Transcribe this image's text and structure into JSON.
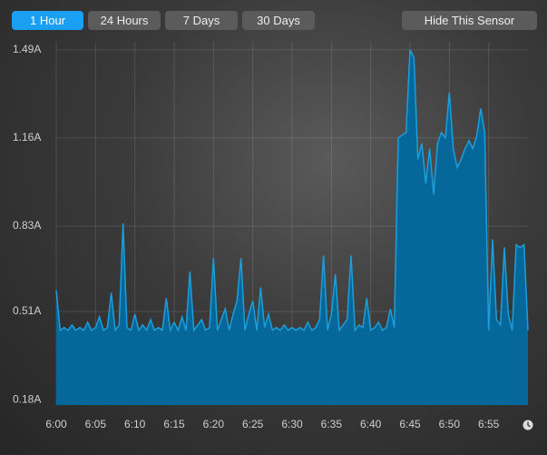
{
  "controls": {
    "ranges": [
      "1 Hour",
      "24 Hours",
      "7 Days",
      "30 Days"
    ],
    "selected": 0,
    "hide_button": "Hide This Sensor"
  },
  "chart_data": {
    "type": "area",
    "x": [
      360,
      360.5,
      361,
      361.5,
      362,
      362.5,
      363,
      363.5,
      364,
      364.5,
      365,
      365.5,
      366,
      366.5,
      367,
      367.5,
      368,
      368.5,
      369,
      369.5,
      370,
      370.5,
      371,
      371.5,
      372,
      372.5,
      373,
      373.5,
      374,
      374.5,
      375,
      375.5,
      376,
      376.5,
      377,
      377.5,
      378,
      378.5,
      379,
      379.5,
      380,
      380.5,
      381,
      381.5,
      382,
      382.5,
      383,
      383.5,
      384,
      384.5,
      385,
      385.5,
      386,
      386.5,
      387,
      387.5,
      388,
      388.5,
      389,
      389.5,
      390,
      390.5,
      391,
      391.5,
      392,
      392.5,
      393,
      393.5,
      394,
      394.5,
      395,
      395.5,
      396,
      396.5,
      397,
      397.5,
      398,
      398.5,
      399,
      399.5,
      400,
      400.5,
      401,
      401.5,
      402,
      402.5,
      403,
      403.5,
      404,
      404.5,
      405,
      405.5,
      406,
      406.5,
      407,
      407.5,
      408,
      408.5,
      409,
      409.5,
      410,
      410.5,
      411,
      411.5,
      412,
      412.5,
      413,
      413.5,
      414,
      414.5,
      415,
      415.5,
      416,
      416.5,
      417,
      417.5,
      418,
      418.5,
      419,
      419.5,
      420
    ],
    "values": [
      0.59,
      0.44,
      0.45,
      0.44,
      0.46,
      0.44,
      0.45,
      0.44,
      0.47,
      0.44,
      0.45,
      0.49,
      0.44,
      0.45,
      0.58,
      0.44,
      0.46,
      0.84,
      0.45,
      0.44,
      0.5,
      0.44,
      0.46,
      0.44,
      0.48,
      0.44,
      0.45,
      0.44,
      0.56,
      0.44,
      0.47,
      0.44,
      0.49,
      0.44,
      0.66,
      0.44,
      0.46,
      0.48,
      0.44,
      0.45,
      0.71,
      0.44,
      0.48,
      0.52,
      0.44,
      0.5,
      0.55,
      0.71,
      0.44,
      0.5,
      0.55,
      0.44,
      0.6,
      0.45,
      0.5,
      0.44,
      0.45,
      0.44,
      0.46,
      0.44,
      0.45,
      0.44,
      0.45,
      0.44,
      0.47,
      0.44,
      0.45,
      0.48,
      0.72,
      0.44,
      0.5,
      0.65,
      0.44,
      0.46,
      0.48,
      0.72,
      0.44,
      0.46,
      0.45,
      0.56,
      0.44,
      0.45,
      0.47,
      0.44,
      0.45,
      0.52,
      0.45,
      1.16,
      1.17,
      1.18,
      1.49,
      1.46,
      1.08,
      1.14,
      0.99,
      1.12,
      0.95,
      1.14,
      1.18,
      1.16,
      1.33,
      1.12,
      1.05,
      1.08,
      1.12,
      1.15,
      1.12,
      1.17,
      1.27,
      1.18,
      0.44,
      0.78,
      0.48,
      0.46,
      0.75,
      0.5,
      0.44,
      0.76,
      0.75,
      0.76,
      0.44
    ],
    "color": "#06679b",
    "line_color": "#1b9fdc",
    "xlim": [
      360,
      420
    ],
    "xticks": [
      {
        "value": 360,
        "label": "6:00"
      },
      {
        "value": 365,
        "label": "6:05"
      },
      {
        "value": 370,
        "label": "6:10"
      },
      {
        "value": 375,
        "label": "6:15"
      },
      {
        "value": 380,
        "label": "6:20"
      },
      {
        "value": 385,
        "label": "6:25"
      },
      {
        "value": 390,
        "label": "6:30"
      },
      {
        "value": 395,
        "label": "6:35"
      },
      {
        "value": 400,
        "label": "6:40"
      },
      {
        "value": 405,
        "label": "6:45"
      },
      {
        "value": 410,
        "label": "6:50"
      },
      {
        "value": 415,
        "label": "6:55"
      }
    ],
    "ylim": [
      0.16,
      1.52
    ],
    "yticks": [
      {
        "value": 0.18,
        "label": "0.18A"
      },
      {
        "value": 0.51,
        "label": "0.51A"
      },
      {
        "value": 0.83,
        "label": "0.83A"
      },
      {
        "value": 1.16,
        "label": "1.16A"
      },
      {
        "value": 1.49,
        "label": "1.49A"
      }
    ],
    "grid": true
  }
}
